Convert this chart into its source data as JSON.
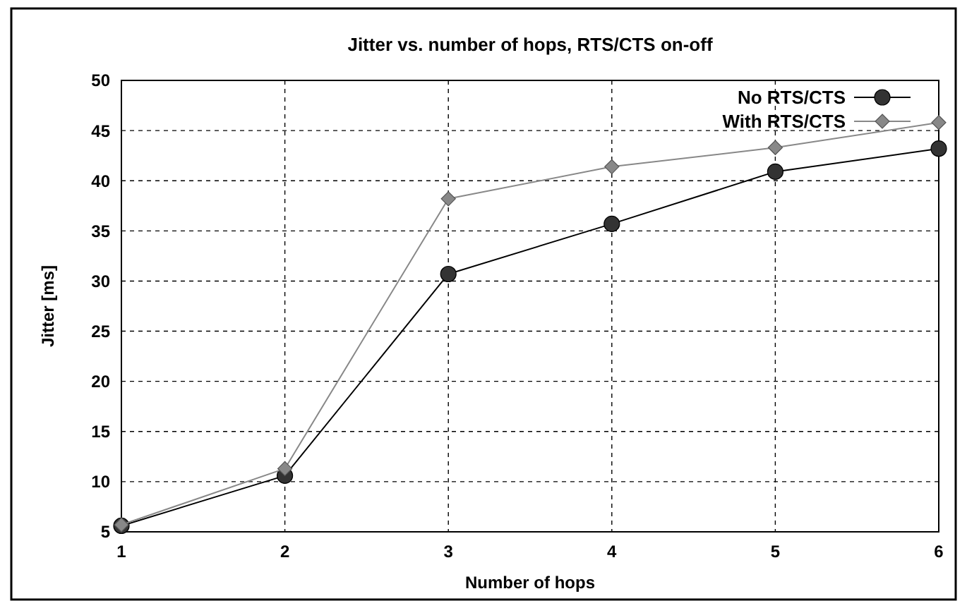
{
  "chart_data": {
    "type": "line",
    "title": "Jitter vs. number of hops, RTS/CTS on-off",
    "xlabel": "Number of hops",
    "ylabel": "Jitter [ms]",
    "x": [
      1,
      2,
      3,
      4,
      5,
      6
    ],
    "xlim": [
      1,
      6
    ],
    "xticks": [
      1,
      2,
      3,
      4,
      5,
      6
    ],
    "ylim": [
      5,
      50
    ],
    "yticks": [
      5,
      10,
      15,
      20,
      25,
      30,
      35,
      40,
      45,
      50
    ],
    "grid": true,
    "legend": "top right",
    "series": [
      {
        "name": "No RTS/CTS",
        "color": "#333333",
        "marker": "circle",
        "values": [
          5.6,
          10.6,
          30.7,
          35.7,
          40.9,
          43.2
        ]
      },
      {
        "name": "With RTS/CTS",
        "color": "#888888",
        "marker": "diamond",
        "values": [
          5.7,
          11.3,
          38.2,
          41.4,
          43.3,
          45.8
        ]
      }
    ]
  }
}
